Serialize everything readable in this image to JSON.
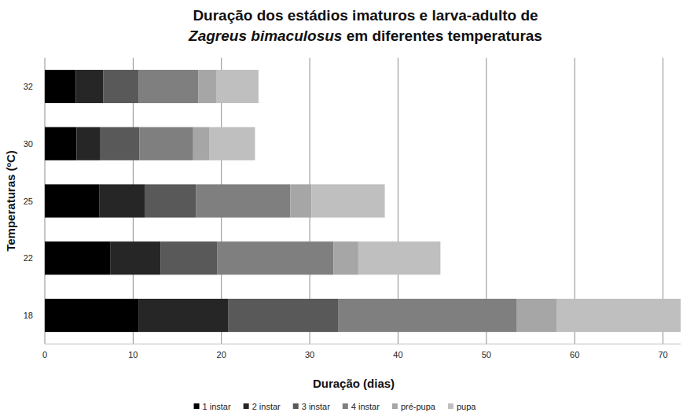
{
  "chart_data": {
    "type": "bar",
    "orientation": "horizontal",
    "stacked": true,
    "title": "Duração dos estádios imaturos e larva-adulto de Zagreus bimaculosus em diferentes temperaturas",
    "x_label": "Duração (dias)",
    "y_label": "Temperaturas (ºC)",
    "categories": [
      "18",
      "22",
      "25",
      "30",
      "32"
    ],
    "series": [
      {
        "name": "1 instar",
        "color": "#000000",
        "values": [
          10.6,
          7.4,
          6.2,
          3.6,
          3.5
        ]
      },
      {
        "name": "2 instar",
        "color": "#262626",
        "values": [
          10.2,
          5.7,
          5.1,
          2.7,
          3.1
        ]
      },
      {
        "name": "3 instar",
        "color": "#595959",
        "values": [
          12.4,
          6.4,
          5.8,
          4.4,
          4.0
        ]
      },
      {
        "name": "4 instar",
        "color": "#7f7f7f",
        "values": [
          20.2,
          13.2,
          10.7,
          6.1,
          6.8
        ]
      },
      {
        "name": "pré-pupa",
        "color": "#a6a6a6",
        "values": [
          4.6,
          2.8,
          2.4,
          1.8,
          2.0
        ]
      },
      {
        "name": "pupa",
        "color": "#bfbfbf",
        "values": [
          14.0,
          9.3,
          8.3,
          5.2,
          4.8
        ]
      }
    ],
    "xlim": [
      0,
      72
    ],
    "xticks": [
      0,
      10,
      20,
      30,
      40,
      50,
      60,
      70
    ],
    "grid": true,
    "legend": "bottom"
  }
}
